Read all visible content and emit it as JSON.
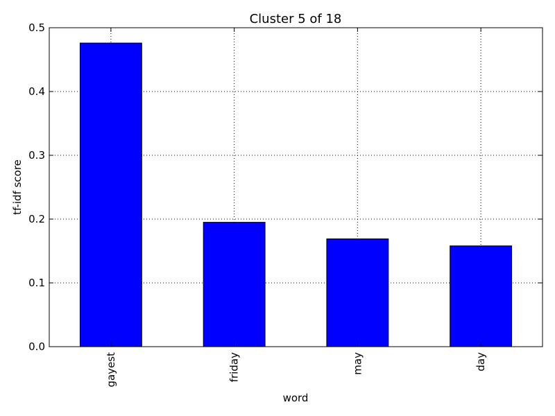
{
  "chart_data": {
    "type": "bar",
    "title": "Cluster 5 of 18",
    "xlabel": "word",
    "ylabel": "tf-idf score",
    "categories": [
      "gayest",
      "friday",
      "may",
      "day"
    ],
    "values": [
      0.476,
      0.195,
      0.169,
      0.158
    ],
    "ylim": [
      0,
      0.5
    ],
    "yticks": [
      "0.0",
      "0.1",
      "0.2",
      "0.3",
      "0.4",
      "0.5"
    ],
    "grid": true,
    "legend": "none",
    "bar_color": "#0000ff",
    "edge_color": "#000000"
  }
}
